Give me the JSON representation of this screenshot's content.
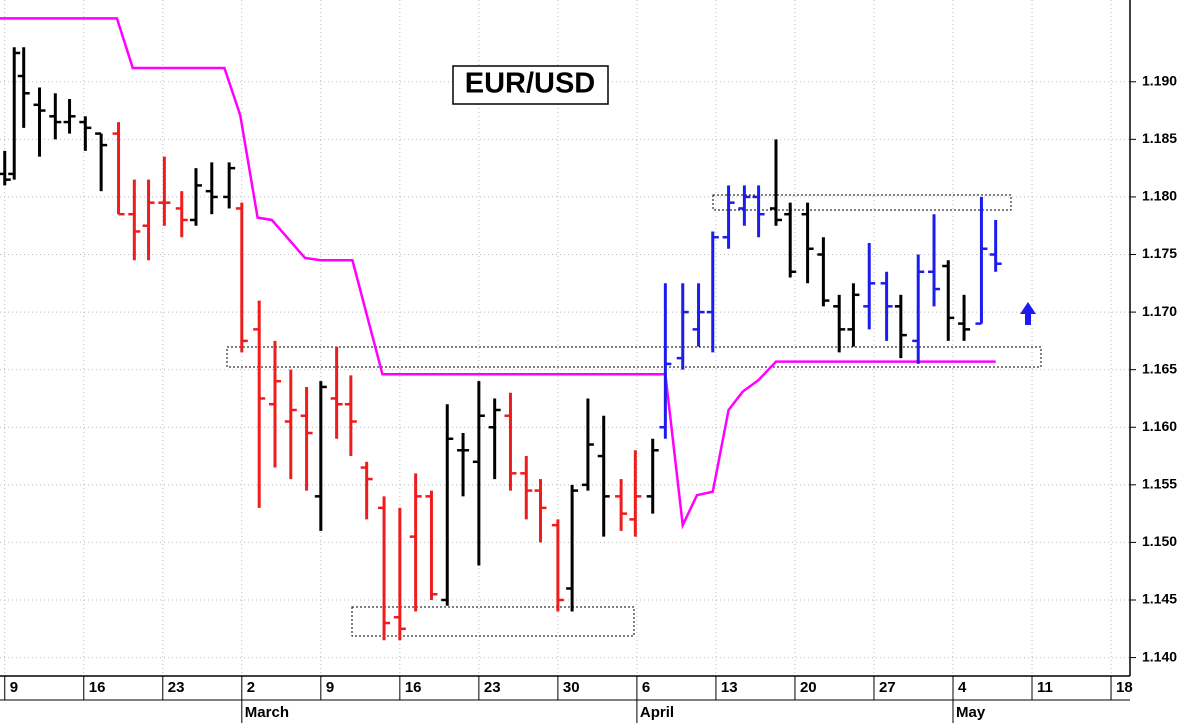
{
  "chart_data": {
    "type": "ohlc",
    "title": "EUR/USD",
    "x": [
      0,
      0.6,
      1.2,
      2.2,
      3.2,
      4.1,
      5.1,
      6.1,
      7.2,
      8.2,
      9.1,
      10.1,
      11.2,
      12.1,
      13.1,
      14.2,
      15.0,
      16.1,
      17.1,
      18.1,
      19.1,
      20.0,
      21.0,
      21.9,
      22.9,
      24.0,
      25.0,
      26.0,
      27.0,
      28.0,
      29.0,
      30.0,
      31.0,
      32.0,
      33.0,
      33.9,
      35.0,
      35.9,
      36.9,
      37.9,
      39.0,
      39.9,
      41.0,
      41.8,
      42.9,
      43.9,
      44.8,
      45.8,
      46.8,
      47.7,
      48.8,
      49.7,
      50.8,
      51.8,
      52.8,
      53.7,
      54.7,
      55.8,
      56.7,
      57.8,
      58.8,
      59.7,
      60.7,
      61.8,
      62.7
    ],
    "open": [
      1.182,
      1.182,
      1.1905,
      1.188,
      1.187,
      1.1865,
      1.1865,
      1.1855,
      1.1855,
      1.1785,
      1.1775,
      1.1795,
      1.179,
      1.178,
      1.1805,
      1.18,
      1.179,
      1.1685,
      1.162,
      1.1605,
      1.161,
      1.154,
      1.1625,
      1.162,
      1.1565,
      1.153,
      1.1435,
      1.1505,
      1.154,
      1.145,
      1.158,
      1.157,
      1.16,
      1.161,
      1.156,
      1.1545,
      1.1515,
      1.146,
      1.155,
      1.1575,
      1.154,
      1.152,
      1.154,
      1.16,
      1.166,
      1.1685,
      1.17,
      1.1765,
      1.179,
      1.18,
      1.179,
      1.1785,
      1.1785,
      1.175,
      1.1705,
      1.1685,
      1.1705,
      1.1725,
      1.1705,
      1.1675,
      1.1735,
      1.174,
      1.169,
      1.169,
      1.175
    ],
    "high": [
      1.184,
      1.193,
      1.193,
      1.1895,
      1.189,
      1.1885,
      1.187,
      1.1855,
      1.1865,
      1.1815,
      1.1815,
      1.1835,
      1.1805,
      1.1825,
      1.183,
      1.183,
      1.1795,
      1.171,
      1.1675,
      1.165,
      1.1635,
      1.164,
      1.167,
      1.1645,
      1.157,
      1.154,
      1.153,
      1.156,
      1.1545,
      1.162,
      1.1595,
      1.164,
      1.1625,
      1.163,
      1.1575,
      1.1555,
      1.152,
      1.155,
      1.1625,
      1.161,
      1.1555,
      1.158,
      1.159,
      1.1725,
      1.1725,
      1.1725,
      1.177,
      1.181,
      1.181,
      1.181,
      1.185,
      1.1795,
      1.1795,
      1.1765,
      1.1715,
      1.1725,
      1.176,
      1.1735,
      1.1715,
      1.175,
      1.1785,
      1.1745,
      1.1715,
      1.18,
      1.178
    ],
    "low": [
      1.181,
      1.1815,
      1.186,
      1.1835,
      1.185,
      1.1855,
      1.184,
      1.1805,
      1.1785,
      1.1745,
      1.1745,
      1.1775,
      1.1765,
      1.1775,
      1.1785,
      1.179,
      1.1665,
      1.153,
      1.1565,
      1.1555,
      1.1545,
      1.151,
      1.159,
      1.1575,
      1.152,
      1.1415,
      1.1415,
      1.144,
      1.145,
      1.1445,
      1.154,
      1.148,
      1.1555,
      1.1545,
      1.152,
      1.15,
      1.144,
      1.144,
      1.1545,
      1.1505,
      1.151,
      1.1505,
      1.1525,
      1.159,
      1.165,
      1.167,
      1.1665,
      1.1755,
      1.1775,
      1.1765,
      1.1775,
      1.173,
      1.1725,
      1.1705,
      1.1665,
      1.167,
      1.1685,
      1.1675,
      1.166,
      1.1655,
      1.1705,
      1.1675,
      1.1675,
      1.169,
      1.1735
    ],
    "close": [
      1.1815,
      1.1925,
      1.189,
      1.1875,
      1.1865,
      1.187,
      1.186,
      1.1845,
      1.1785,
      1.177,
      1.1795,
      1.1795,
      1.178,
      1.181,
      1.18,
      1.1825,
      1.1675,
      1.1625,
      1.164,
      1.1615,
      1.1595,
      1.1635,
      1.162,
      1.1605,
      1.1555,
      1.143,
      1.1425,
      1.154,
      1.1455,
      1.159,
      1.158,
      1.161,
      1.1615,
      1.156,
      1.1545,
      1.153,
      1.145,
      1.1545,
      1.1585,
      1.154,
      1.1525,
      1.154,
      1.158,
      1.1655,
      1.17,
      1.17,
      1.1765,
      1.1795,
      1.18,
      1.1785,
      1.178,
      1.1735,
      1.1755,
      1.171,
      1.1685,
      1.1715,
      1.1725,
      1.1705,
      1.168,
      1.1735,
      1.172,
      1.1695,
      1.1685,
      1.1755,
      1.1742
    ],
    "bar_colors": [
      "#000000",
      "#000000",
      "#000000",
      "#000000",
      "#000000",
      "#000000",
      "#000000",
      "#000000",
      "#ee1c1c",
      "#ee1c1c",
      "#ee1c1c",
      "#ee1c1c",
      "#ee1c1c",
      "#000000",
      "#000000",
      "#000000",
      "#ee1c1c",
      "#ee1c1c",
      "#ee1c1c",
      "#ee1c1c",
      "#ee1c1c",
      "#000000",
      "#ee1c1c",
      "#ee1c1c",
      "#ee1c1c",
      "#ee1c1c",
      "#ee1c1c",
      "#ee1c1c",
      "#ee1c1c",
      "#000000",
      "#000000",
      "#000000",
      "#000000",
      "#ee1c1c",
      "#ee1c1c",
      "#ee1c1c",
      "#ee1c1c",
      "#000000",
      "#000000",
      "#000000",
      "#ee1c1c",
      "#ee1c1c",
      "#000000",
      "#1c1cee",
      "#1c1cee",
      "#1c1cee",
      "#1c1cee",
      "#1c1cee",
      "#1c1cee",
      "#1c1cee",
      "#000000",
      "#000000",
      "#000000",
      "#000000",
      "#000000",
      "#000000",
      "#1c1cee",
      "#1c1cee",
      "#000000",
      "#1c1cee",
      "#1c1cee",
      "#000000",
      "#000000",
      "#1c1cee",
      "#1c1cee"
    ],
    "stop_line": {
      "color": "#ff00ff",
      "x": [
        -0.3,
        7.1,
        8.1,
        13.9,
        14.9,
        16.0,
        16.9,
        19.0,
        20.0,
        22.0,
        23.9,
        41.8,
        42.9,
        43.8,
        44.8,
        45.8,
        46.7,
        47.7,
        48.8,
        62.7
      ],
      "values": [
        1.1955,
        1.1955,
        1.1912,
        1.1912,
        1.1871,
        1.1782,
        1.178,
        1.1747,
        1.1745,
        1.1745,
        1.1646,
        1.1646,
        1.1515,
        1.1541,
        1.1544,
        1.1615,
        1.1631,
        1.1641,
        1.1657,
        1.1657
      ]
    },
    "xlim": [
      -0.3,
      71.2
    ],
    "ylim": [
      1.1384,
      1.1971
    ],
    "xticks": [
      {
        "value": 0,
        "label": "9"
      },
      {
        "value": 5,
        "label": "16"
      },
      {
        "value": 10,
        "label": "23"
      },
      {
        "value": 15,
        "label": "2"
      },
      {
        "value": 20,
        "label": "9"
      },
      {
        "value": 25,
        "label": "16"
      },
      {
        "value": 30,
        "label": "23"
      },
      {
        "value": 35,
        "label": "30"
      },
      {
        "value": 40,
        "label": "6"
      },
      {
        "value": 45,
        "label": "13"
      },
      {
        "value": 50,
        "label": "20"
      },
      {
        "value": 55,
        "label": "27"
      },
      {
        "value": 60,
        "label": "4"
      },
      {
        "value": 65,
        "label": "11"
      },
      {
        "value": 70,
        "label": "18"
      }
    ],
    "month_ticks": [
      {
        "value": 15,
        "label": "March"
      },
      {
        "value": 40,
        "label": "April"
      },
      {
        "value": 60,
        "label": "May"
      }
    ],
    "yticks": [
      {
        "value": 1.14,
        "label": "1.140"
      },
      1.145,
      {
        "value": 1.15,
        "label": "1.150"
      },
      1.155,
      {
        "value": 1.16,
        "label": "1.160"
      },
      1.165,
      {
        "value": 1.17,
        "label": "1.170"
      },
      1.175,
      {
        "value": 1.18,
        "label": "1.180"
      },
      1.185,
      {
        "value": 1.19,
        "label": "1.190"
      }
    ],
    "grid": true
  }
}
